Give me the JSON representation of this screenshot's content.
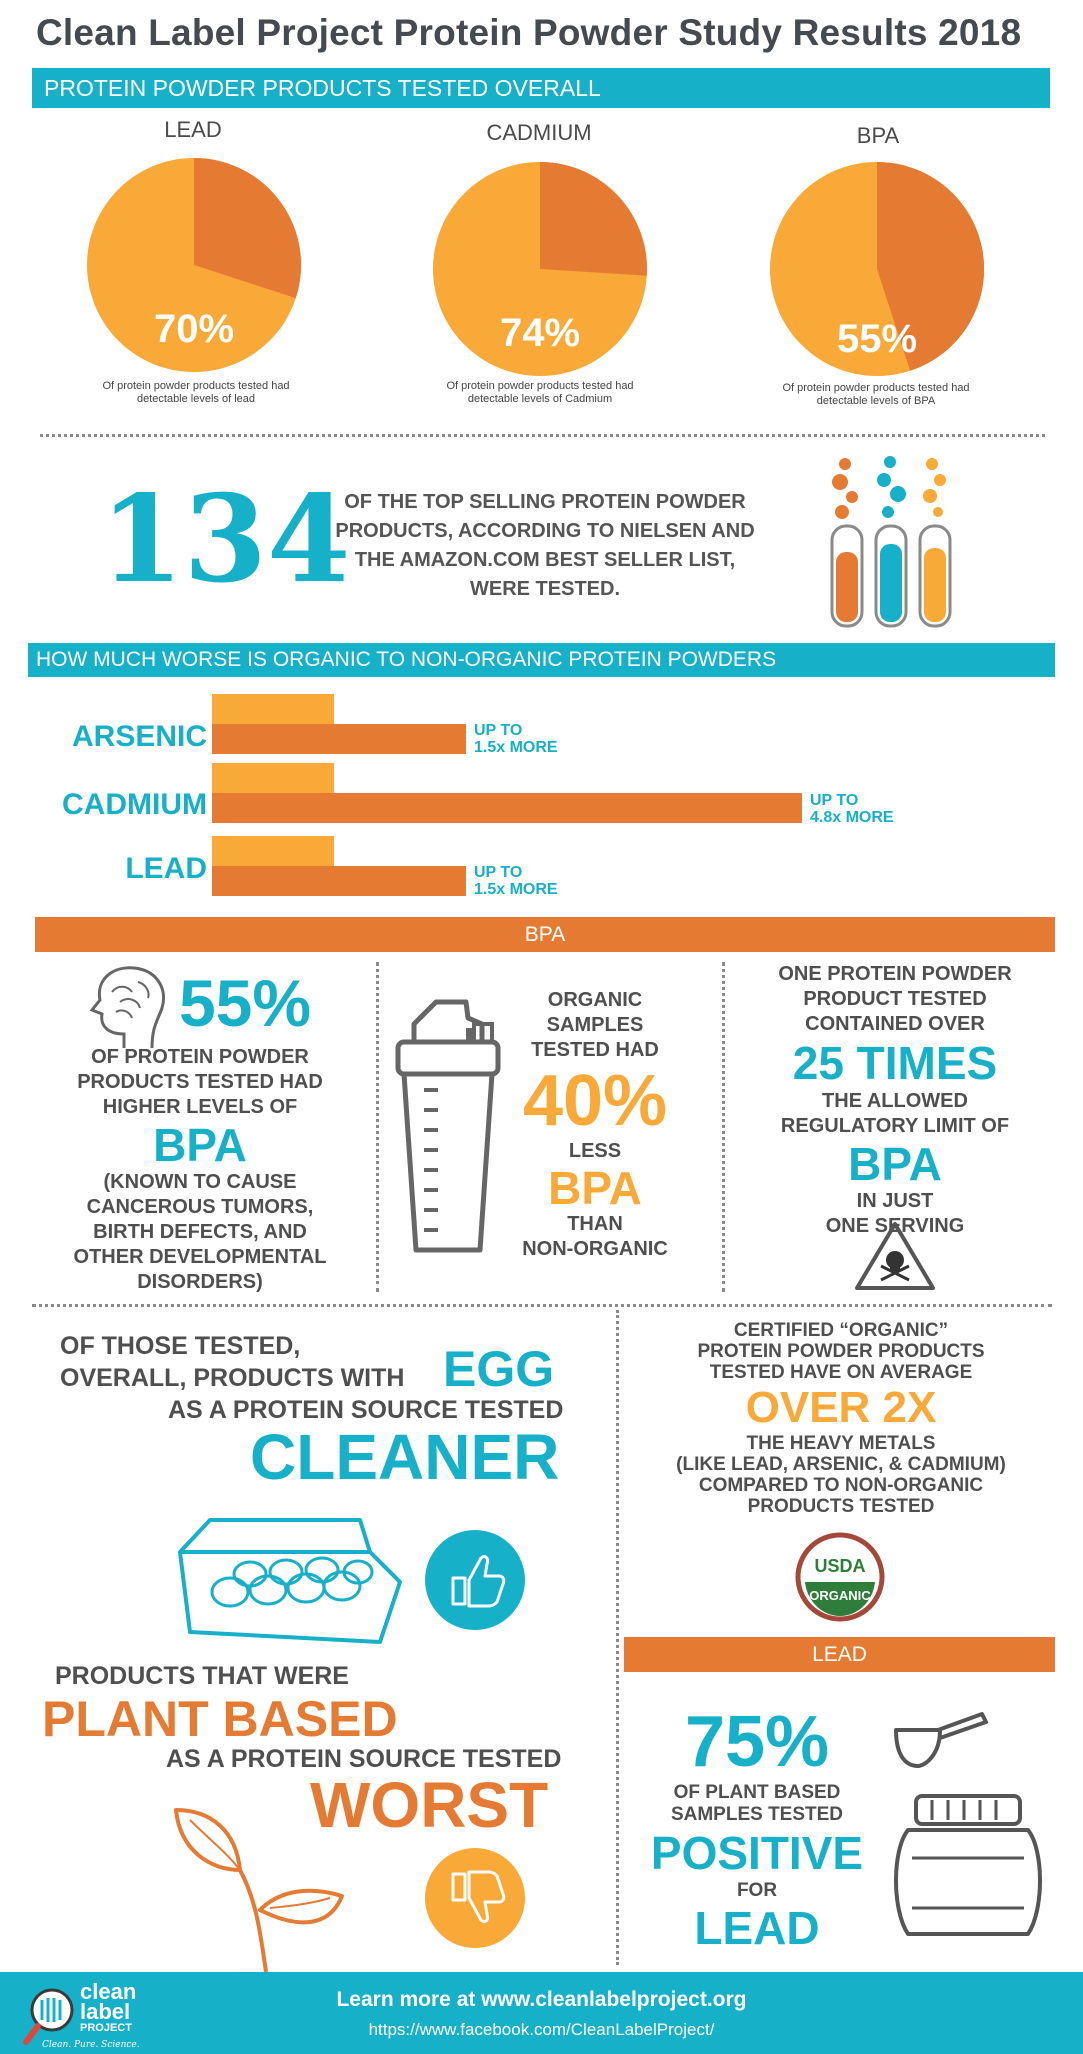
{
  "title": "Clean Label Project Protein Powder Study Results 2018",
  "section1": {
    "header": "PROTEIN POWDER PRODUCTS TESTED OVERALL",
    "pies": [
      {
        "label": "LEAD",
        "percent": "70%",
        "value": 70,
        "caption": "Of protein powder products tested had detectable levels of lead"
      },
      {
        "label": "CADMIUM",
        "percent": "74%",
        "value": 74,
        "caption": "Of protein powder products tested had detectable levels of Cadmium"
      },
      {
        "label": "BPA",
        "percent": "55%",
        "value": 55,
        "caption": "Of protein powder products tested had detectable levels of BPA"
      }
    ],
    "colors": {
      "detected": "#f8a937",
      "rest": "#e57b33"
    }
  },
  "section2": {
    "number": "134",
    "text": "OF THE TOP SELLING PROTEIN POWDER PRODUCTS, ACCORDING TO NIELSEN AND THE AMAZON.COM BEST SELLER LIST, WERE TESTED."
  },
  "section3": {
    "header": "HOW MUCH WORSE IS ORGANIC TO NON-ORGANIC PROTEIN POWDERS",
    "bars": [
      {
        "label": "ARSENIC",
        "multiplier": 1.5,
        "note_top": "UP TO",
        "note_bottom": "1.5x MORE"
      },
      {
        "label": "CADMIUM",
        "multiplier": 4.8,
        "note_top": "UP TO",
        "note_bottom": "4.8x MORE"
      },
      {
        "label": "LEAD",
        "multiplier": 1.5,
        "note_top": "UP TO",
        "note_bottom": "1.5x MORE"
      }
    ]
  },
  "section4": {
    "header": "BPA",
    "col1": {
      "pct": "55%",
      "line1": "OF PROTEIN POWDER",
      "line2": "PRODUCTS TESTED HAD",
      "line3": "HIGHER LEVELS OF",
      "bpa": "BPA",
      "note1": "(KNOWN TO CAUSE",
      "note2": "CANCEROUS TUMORS,",
      "note3": "BIRTH DEFECTS, AND",
      "note4": "OTHER DEVELOPMENTAL",
      "note5": "DISORDERS)"
    },
    "col2": {
      "line1": "ORGANIC",
      "line2": "SAMPLES",
      "line3": "TESTED HAD",
      "pct": "40%",
      "less": "LESS",
      "bpa": "BPA",
      "than": "THAN",
      "non": "NON-ORGANIC"
    },
    "col3": {
      "line1": "ONE PROTEIN POWDER",
      "line2": "PRODUCT TESTED",
      "line3": "CONTAINED OVER",
      "times": "25 TIMES",
      "line4": "THE ALLOWED",
      "line5": "REGULATORY LIMIT OF",
      "bpa": "BPA",
      "line6": "IN JUST",
      "line7": "ONE SERVING"
    }
  },
  "section5": {
    "egg": {
      "line1": "OF THOSE TESTED,",
      "line2": "OVERALL, PRODUCTS WITH",
      "egg": "EGG",
      "line3": "AS A PROTEIN SOURCE TESTED",
      "cleaner": "CLEANER"
    },
    "plant": {
      "line1": "PRODUCTS THAT WERE",
      "plant": "PLANT BASED",
      "line2": "AS A PROTEIN SOURCE TESTED",
      "worst": "WORST"
    },
    "organic": {
      "line1": "CERTIFIED “ORGANIC”",
      "line2": "PROTEIN POWDER PRODUCTS",
      "line3": "TESTED HAVE ON AVERAGE",
      "over": "OVER 2X",
      "line4": "THE HEAVY METALS",
      "line5": "(LIKE LEAD, ARSENIC, & CADMIUM)",
      "line6": "COMPARED TO NON-ORGANIC",
      "line7": "PRODUCTS TESTED",
      "usda_top": "USDA",
      "usda_bottom": "ORGANIC"
    },
    "lead": {
      "header": "LEAD",
      "pct": "75%",
      "line1": "OF PLANT BASED",
      "line2": "SAMPLES TESTED",
      "positive": "POSITIVE",
      "for": "FOR",
      "lead": "LEAD"
    }
  },
  "footer": {
    "logo_line1": "clean",
    "logo_line2": "label",
    "logo_line3": "PROJECT",
    "logo_tag": "Clean. Pure. Science.",
    "learn": "Learn more at www.cleanlabelproject.org",
    "facebook": "https://www.facebook.com/CleanLabelProject/"
  }
}
